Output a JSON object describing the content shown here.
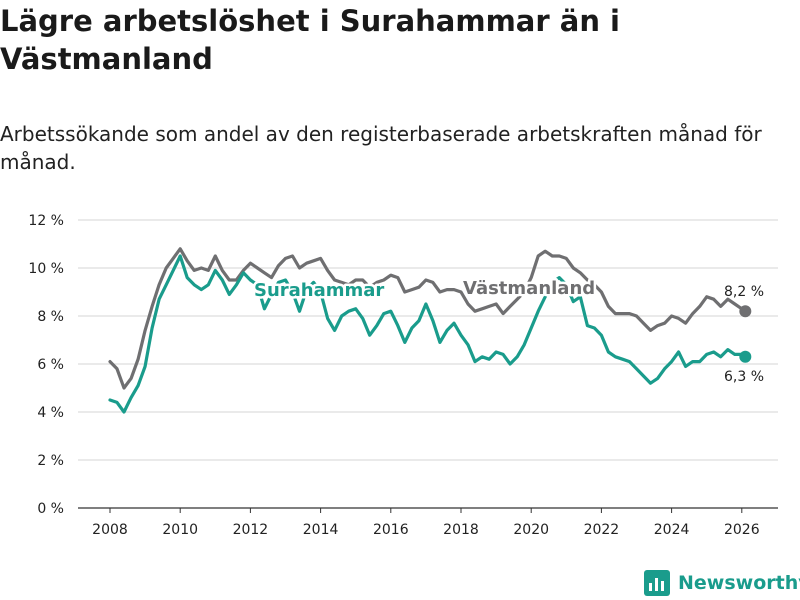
{
  "chart_data": {
    "type": "line",
    "title": "Lägre arbetslöshet i Surahammar än i Västmanland",
    "subtitle": "Arbetssökande som andel av den registerbaserade arbetskraften månad för månad.",
    "ylim": [
      0,
      12
    ],
    "xlim": [
      2007.5,
      2027
    ],
    "y_ticks": [
      0,
      2,
      4,
      6,
      8,
      10,
      12
    ],
    "y_tick_labels": [
      "0 %",
      "2 %",
      "4 %",
      "6 %",
      "8 %",
      "10 %",
      "12 %"
    ],
    "x_ticks": [
      2008,
      2010,
      2012,
      2014,
      2016,
      2018,
      2020,
      2022,
      2024,
      2026
    ],
    "x_tick_labels": [
      "2008",
      "2010",
      "2012",
      "2014",
      "2016",
      "2018",
      "2020",
      "2022",
      "2024",
      "2026"
    ],
    "grid": true,
    "series": [
      {
        "name": "Västmanland",
        "color": "#6f6f71",
        "end_label": "8,2 %",
        "end_value": 8.2,
        "points": [
          [
            2008.0,
            6.1
          ],
          [
            2008.2,
            5.8
          ],
          [
            2008.4,
            5.0
          ],
          [
            2008.6,
            5.4
          ],
          [
            2008.8,
            6.2
          ],
          [
            2009.0,
            7.4
          ],
          [
            2009.2,
            8.4
          ],
          [
            2009.4,
            9.3
          ],
          [
            2009.6,
            10.0
          ],
          [
            2009.8,
            10.4
          ],
          [
            2010.0,
            10.8
          ],
          [
            2010.2,
            10.3
          ],
          [
            2010.4,
            9.9
          ],
          [
            2010.6,
            10.0
          ],
          [
            2010.8,
            9.9
          ],
          [
            2011.0,
            10.5
          ],
          [
            2011.2,
            9.9
          ],
          [
            2011.4,
            9.5
          ],
          [
            2011.6,
            9.5
          ],
          [
            2011.8,
            9.9
          ],
          [
            2012.0,
            10.2
          ],
          [
            2012.2,
            10.0
          ],
          [
            2012.4,
            9.8
          ],
          [
            2012.6,
            9.6
          ],
          [
            2012.8,
            10.1
          ],
          [
            2013.0,
            10.4
          ],
          [
            2013.2,
            10.5
          ],
          [
            2013.4,
            10.0
          ],
          [
            2013.6,
            10.2
          ],
          [
            2013.8,
            10.3
          ],
          [
            2014.0,
            10.4
          ],
          [
            2014.2,
            9.9
          ],
          [
            2014.4,
            9.5
          ],
          [
            2014.6,
            9.4
          ],
          [
            2014.8,
            9.3
          ],
          [
            2015.0,
            9.5
          ],
          [
            2015.2,
            9.5
          ],
          [
            2015.4,
            9.2
          ],
          [
            2015.6,
            9.4
          ],
          [
            2015.8,
            9.5
          ],
          [
            2016.0,
            9.7
          ],
          [
            2016.2,
            9.6
          ],
          [
            2016.4,
            9.0
          ],
          [
            2016.6,
            9.1
          ],
          [
            2016.8,
            9.2
          ],
          [
            2017.0,
            9.5
          ],
          [
            2017.2,
            9.4
          ],
          [
            2017.4,
            9.0
          ],
          [
            2017.6,
            9.1
          ],
          [
            2017.8,
            9.1
          ],
          [
            2018.0,
            9.0
          ],
          [
            2018.2,
            8.5
          ],
          [
            2018.4,
            8.2
          ],
          [
            2018.6,
            8.3
          ],
          [
            2018.8,
            8.4
          ],
          [
            2019.0,
            8.5
          ],
          [
            2019.2,
            8.1
          ],
          [
            2019.4,
            8.4
          ],
          [
            2019.6,
            8.7
          ],
          [
            2019.8,
            9.0
          ],
          [
            2020.0,
            9.6
          ],
          [
            2020.2,
            10.5
          ],
          [
            2020.4,
            10.7
          ],
          [
            2020.6,
            10.5
          ],
          [
            2020.8,
            10.5
          ],
          [
            2021.0,
            10.4
          ],
          [
            2021.2,
            10.0
          ],
          [
            2021.4,
            9.8
          ],
          [
            2021.6,
            9.5
          ],
          [
            2021.8,
            9.3
          ],
          [
            2022.0,
            9.0
          ],
          [
            2022.2,
            8.4
          ],
          [
            2022.4,
            8.1
          ],
          [
            2022.6,
            8.1
          ],
          [
            2022.8,
            8.1
          ],
          [
            2023.0,
            8.0
          ],
          [
            2023.2,
            7.7
          ],
          [
            2023.4,
            7.4
          ],
          [
            2023.6,
            7.6
          ],
          [
            2023.8,
            7.7
          ],
          [
            2024.0,
            8.0
          ],
          [
            2024.2,
            7.9
          ],
          [
            2024.4,
            7.7
          ],
          [
            2024.6,
            8.1
          ],
          [
            2024.8,
            8.4
          ],
          [
            2025.0,
            8.8
          ],
          [
            2025.2,
            8.7
          ],
          [
            2025.4,
            8.4
          ],
          [
            2025.6,
            8.7
          ],
          [
            2025.8,
            8.5
          ],
          [
            2026.0,
            8.3
          ],
          [
            2026.1,
            8.2
          ]
        ]
      },
      {
        "name": "Surahammar",
        "color": "#1a9c8c",
        "end_label": "6,3 %",
        "end_value": 6.3,
        "points": [
          [
            2008.0,
            4.5
          ],
          [
            2008.2,
            4.4
          ],
          [
            2008.4,
            4.0
          ],
          [
            2008.6,
            4.6
          ],
          [
            2008.8,
            5.1
          ],
          [
            2009.0,
            5.9
          ],
          [
            2009.2,
            7.5
          ],
          [
            2009.4,
            8.7
          ],
          [
            2009.6,
            9.3
          ],
          [
            2009.8,
            9.9
          ],
          [
            2010.0,
            10.5
          ],
          [
            2010.2,
            9.6
          ],
          [
            2010.4,
            9.3
          ],
          [
            2010.6,
            9.1
          ],
          [
            2010.8,
            9.3
          ],
          [
            2011.0,
            9.9
          ],
          [
            2011.2,
            9.5
          ],
          [
            2011.4,
            8.9
          ],
          [
            2011.6,
            9.3
          ],
          [
            2011.8,
            9.8
          ],
          [
            2012.0,
            9.5
          ],
          [
            2012.2,
            9.3
          ],
          [
            2012.4,
            8.3
          ],
          [
            2012.6,
            8.9
          ],
          [
            2012.8,
            9.4
          ],
          [
            2013.0,
            9.5
          ],
          [
            2013.2,
            9.0
          ],
          [
            2013.4,
            8.2
          ],
          [
            2013.6,
            9.1
          ],
          [
            2013.8,
            9.4
          ],
          [
            2014.0,
            9.0
          ],
          [
            2014.2,
            7.9
          ],
          [
            2014.4,
            7.4
          ],
          [
            2014.6,
            8.0
          ],
          [
            2014.8,
            8.2
          ],
          [
            2015.0,
            8.3
          ],
          [
            2015.2,
            7.9
          ],
          [
            2015.4,
            7.2
          ],
          [
            2015.6,
            7.6
          ],
          [
            2015.8,
            8.1
          ],
          [
            2016.0,
            8.2
          ],
          [
            2016.2,
            7.6
          ],
          [
            2016.4,
            6.9
          ],
          [
            2016.6,
            7.5
          ],
          [
            2016.8,
            7.8
          ],
          [
            2017.0,
            8.5
          ],
          [
            2017.2,
            7.8
          ],
          [
            2017.4,
            6.9
          ],
          [
            2017.6,
            7.4
          ],
          [
            2017.8,
            7.7
          ],
          [
            2018.0,
            7.2
          ],
          [
            2018.2,
            6.8
          ],
          [
            2018.4,
            6.1
          ],
          [
            2018.6,
            6.3
          ],
          [
            2018.8,
            6.2
          ],
          [
            2019.0,
            6.5
          ],
          [
            2019.2,
            6.4
          ],
          [
            2019.4,
            6.0
          ],
          [
            2019.6,
            6.3
          ],
          [
            2019.8,
            6.8
          ],
          [
            2020.0,
            7.5
          ],
          [
            2020.2,
            8.2
          ],
          [
            2020.4,
            8.8
          ],
          [
            2020.6,
            9.4
          ],
          [
            2020.8,
            9.6
          ],
          [
            2021.0,
            9.3
          ],
          [
            2021.2,
            8.6
          ],
          [
            2021.4,
            8.8
          ],
          [
            2021.6,
            7.6
          ],
          [
            2021.8,
            7.5
          ],
          [
            2022.0,
            7.2
          ],
          [
            2022.2,
            6.5
          ],
          [
            2022.4,
            6.3
          ],
          [
            2022.6,
            6.2
          ],
          [
            2022.8,
            6.1
          ],
          [
            2023.0,
            5.8
          ],
          [
            2023.2,
            5.5
          ],
          [
            2023.4,
            5.2
          ],
          [
            2023.6,
            5.4
          ],
          [
            2023.8,
            5.8
          ],
          [
            2024.0,
            6.1
          ],
          [
            2024.2,
            6.5
          ],
          [
            2024.4,
            5.9
          ],
          [
            2024.6,
            6.1
          ],
          [
            2024.8,
            6.1
          ],
          [
            2025.0,
            6.4
          ],
          [
            2025.2,
            6.5
          ],
          [
            2025.4,
            6.3
          ],
          [
            2025.6,
            6.6
          ],
          [
            2025.8,
            6.4
          ],
          [
            2026.0,
            6.4
          ],
          [
            2026.1,
            6.3
          ]
        ]
      }
    ],
    "inline_labels": {
      "surahammar": "Surahammar",
      "vastmanland": "Västmanland"
    }
  },
  "branding": {
    "logo_text": "Newsworthy",
    "logo_icon": "newsworthy-bars-icon",
    "accent_color": "#1a9c8c"
  }
}
